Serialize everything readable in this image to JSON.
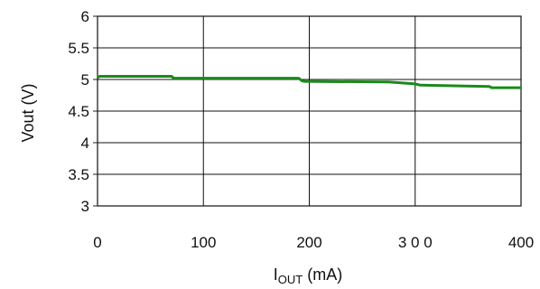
{
  "chart_data": {
    "type": "line",
    "title": "",
    "xlabel": "I",
    "xlabel_sub": "OUT",
    "xlabel_unit": " (mA)",
    "ylabel": "Vout (V)",
    "xlim": [
      0,
      400
    ],
    "ylim": [
      3,
      6
    ],
    "x_ticks": [
      0,
      100,
      200,
      300,
      400
    ],
    "x_tick_labels": [
      "0",
      "100",
      "200",
      "3 0 0",
      "400"
    ],
    "y_ticks": [
      3,
      3.5,
      4,
      4.5,
      5,
      5.5,
      6
    ],
    "y_tick_labels": [
      "3",
      "3.5",
      "4",
      "4.5",
      "5",
      "5.5",
      "6"
    ],
    "grid": true,
    "series": [
      {
        "color": "#1a8a1a",
        "points": [
          [
            0,
            5.03
          ],
          [
            2,
            5.05
          ],
          [
            70,
            5.05
          ],
          [
            72,
            5.02
          ],
          [
            190,
            5.02
          ],
          [
            193,
            4.98
          ],
          [
            195,
            4.97
          ],
          [
            275,
            4.96
          ],
          [
            300,
            4.93
          ],
          [
            305,
            4.91
          ],
          [
            370,
            4.89
          ],
          [
            372,
            4.87
          ],
          [
            400,
            4.87
          ]
        ]
      }
    ]
  }
}
